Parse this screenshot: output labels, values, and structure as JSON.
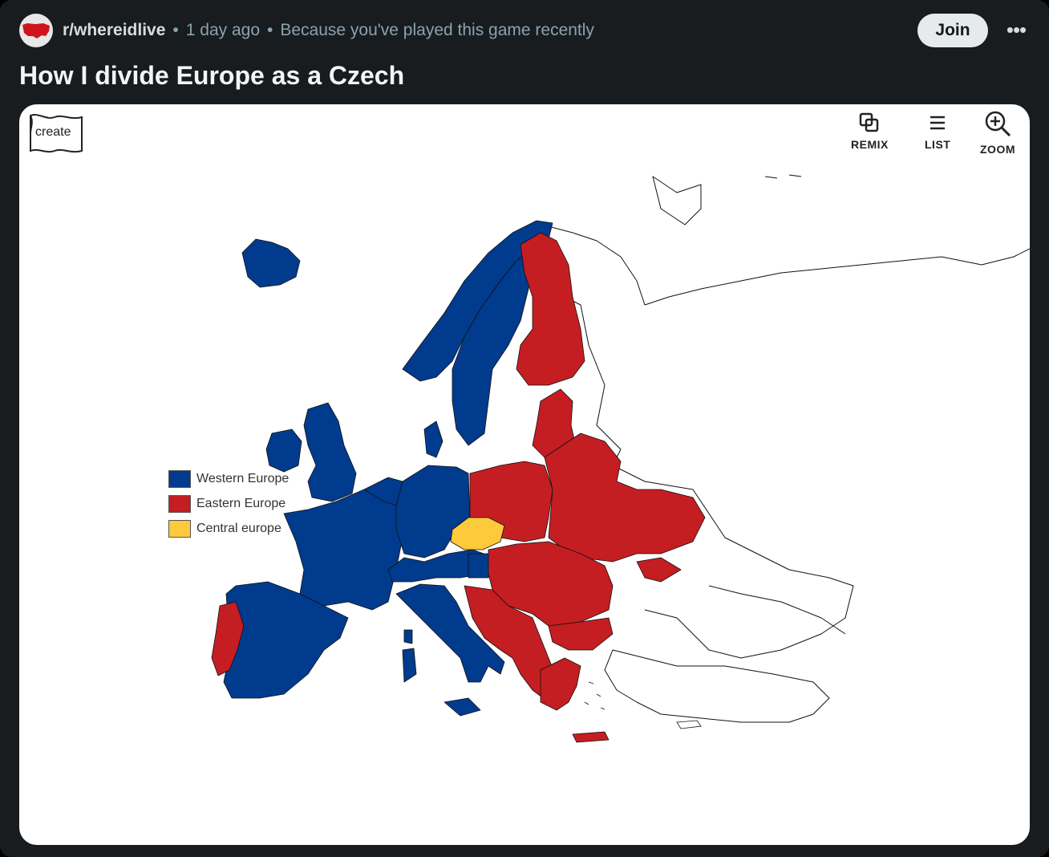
{
  "post": {
    "subreddit": "r/whereidlive",
    "age": "1 day ago",
    "reason": "Because you've played this game recently",
    "join_label": "Join",
    "more_label": "•••",
    "title": "How I divide Europe as a Czech"
  },
  "map_card": {
    "create_label": "create",
    "tools": [
      {
        "label": "REMIX",
        "icon": "remix-icon"
      },
      {
        "label": "LIST",
        "icon": "list-icon"
      },
      {
        "label": "ZOOM",
        "icon": "zoom-in-icon"
      }
    ],
    "legend": [
      {
        "label": "Western Europe",
        "color": "#003b8e"
      },
      {
        "label": "Eastern Europe",
        "color": "#c41e22"
      },
      {
        "label": "Central europe",
        "color": "#fec93a"
      }
    ]
  }
}
